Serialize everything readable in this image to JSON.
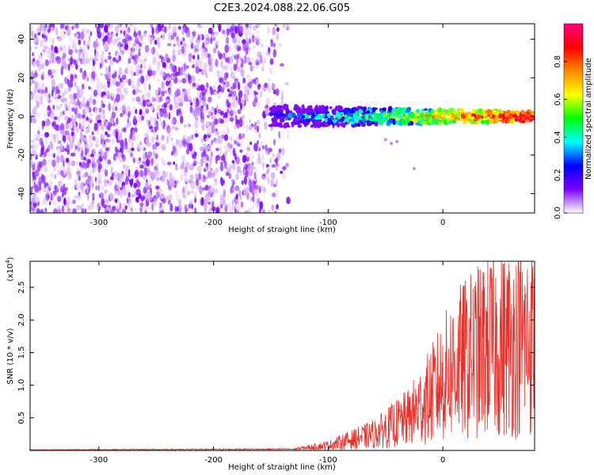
{
  "title": "C2E3.2024.088.22.06.G05",
  "chart_data": [
    {
      "type": "heatmap",
      "xlabel": "Height of straight line (km)",
      "ylabel": "Frequency (Hz)",
      "xlim": [
        -360,
        80
      ],
      "ylim": [
        -50,
        48
      ],
      "x_ticks": [
        -300,
        -200,
        -100,
        0
      ],
      "x_tick_labels": [
        "-300",
        "-200",
        "-100",
        "0"
      ],
      "y_ticks": [
        -40,
        -20,
        0,
        20,
        40
      ],
      "y_tick_labels": [
        "-40",
        "-20",
        "0",
        "20",
        "40"
      ],
      "colorbar": {
        "label": "Normalized spectral amplitude",
        "range": [
          0,
          1
        ],
        "ticks": [
          0.0,
          0.2,
          0.4,
          0.6,
          0.8
        ],
        "tick_labels": [
          "0.0",
          "0.2",
          "0.4",
          "0.6",
          "0.8"
        ],
        "colors": [
          "#ffffff",
          "#7b00ff",
          "#0000ff",
          "#00ffff",
          "#00ff00",
          "#ffff00",
          "#ff8800",
          "#ff0000",
          "#ff0080"
        ]
      },
      "regions": [
        {
          "name": "noise",
          "x_range": [
            -360,
            -130
          ],
          "y_range": [
            -50,
            48
          ],
          "amplitude": 0.1
        },
        {
          "name": "signal_band",
          "x_range": [
            -150,
            80
          ],
          "center_hz": 0,
          "width_hz": 4,
          "amplitude_range": [
            0.2,
            0.95
          ]
        }
      ]
    },
    {
      "type": "line",
      "xlabel": "Height of straight line (km)",
      "ylabel": "SNR (10 * v/v)",
      "y_scale_label": "(x10",
      "y_scale_exp": "4",
      "y_scale_close": ")",
      "xlim": [
        -360,
        80
      ],
      "ylim": [
        0,
        2.9
      ],
      "x_ticks": [
        -300,
        -200,
        -100,
        0
      ],
      "x_tick_labels": [
        "-300",
        "-200",
        "-100",
        "0"
      ],
      "y_ticks": [
        0.5,
        1.0,
        1.5,
        2.0,
        2.5
      ],
      "y_tick_labels": [
        "0.5",
        "1.0",
        "1.5",
        "2.0",
        "2.5"
      ],
      "color": "#e8302a",
      "trend": [
        {
          "x": -360,
          "y": 0.01
        },
        {
          "x": -130,
          "y": 0.02
        },
        {
          "x": -100,
          "y": 0.08
        },
        {
          "x": -60,
          "y": 0.25
        },
        {
          "x": -30,
          "y": 0.5
        },
        {
          "x": -10,
          "y": 0.85
        },
        {
          "x": 10,
          "y": 1.3
        },
        {
          "x": 40,
          "y": 1.6
        },
        {
          "x": 80,
          "y": 1.7
        }
      ]
    }
  ]
}
